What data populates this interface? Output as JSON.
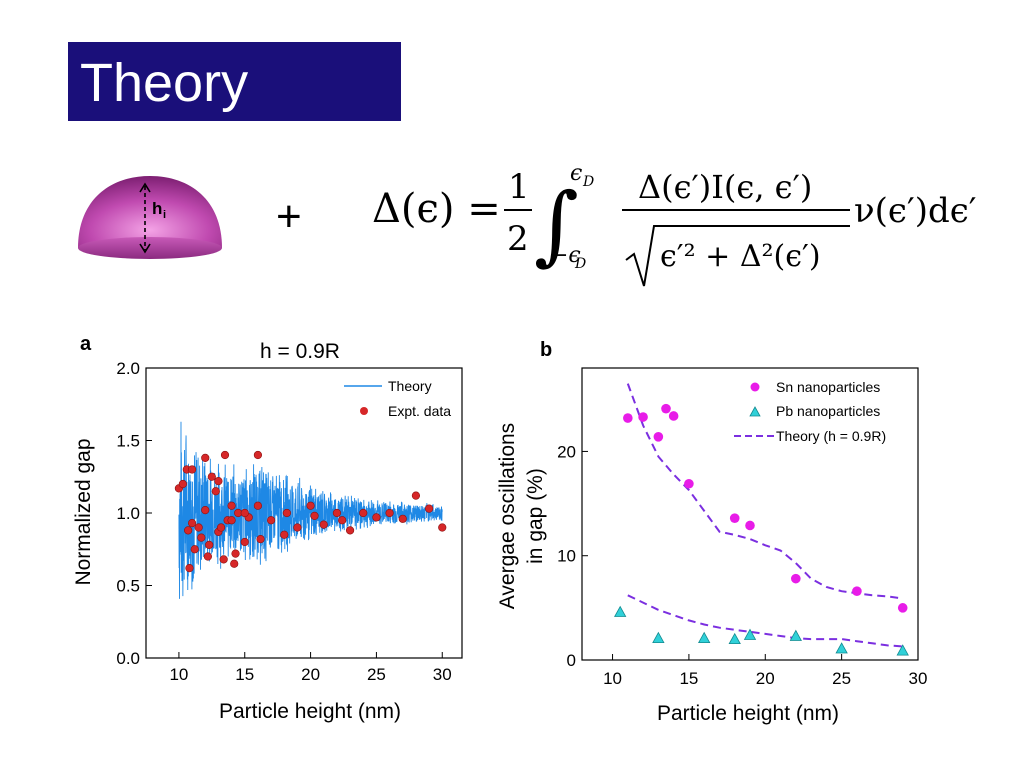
{
  "slide": {
    "title": "Theory",
    "plus": "+",
    "dome_label_main": "h",
    "dome_label_sub": "i",
    "colors": {
      "title_bg": "#1a0f7a",
      "dome": "#c04ab0"
    }
  },
  "equation": {
    "lhs": "Δ(ϵ) =",
    "frac_num": "1",
    "frac_den": "2",
    "integral": "∫",
    "upper_limit": "ϵ",
    "upper_limit_sub": "D",
    "lower_limit": "−ϵ",
    "lower_limit_sub": "D",
    "numerator": "Δ(ϵ′)I(ϵ, ϵ′)",
    "denominator": "ϵ′² + Δ²(ϵ′)",
    "tail": "ν(ϵ′)dϵ′"
  },
  "chart_data": [
    {
      "type": "line+scatter",
      "panel_label": "a",
      "title": "h = 0.9R",
      "xlabel": "Particle height (nm)",
      "ylabel": "Normalized gap",
      "xlim": [
        7.5,
        31.5
      ],
      "ylim": [
        0.0,
        2.0
      ],
      "xticks": [
        10,
        15,
        20,
        25,
        30
      ],
      "yticks": [
        "0.0",
        "0.5",
        "1.0",
        "1.5",
        "2.0"
      ],
      "legend_position": "top-right",
      "series": [
        {
          "name": "Theory",
          "color": "#1e88e5",
          "kind": "oscillation-band",
          "x_range": [
            10,
            30
          ],
          "center": 1.0,
          "amplitude": [
            [
              10,
              0.75
            ],
            [
              12,
              0.45
            ],
            [
              14,
              0.35
            ],
            [
              16,
              0.4
            ],
            [
              18,
              0.3
            ],
            [
              20,
              0.22
            ],
            [
              22,
              0.15
            ],
            [
              25,
              0.1
            ],
            [
              28,
              0.08
            ],
            [
              30,
              0.06
            ]
          ]
        },
        {
          "name": "Expt. data",
          "color": "#d62728",
          "x": [
            10.0,
            10.3,
            10.6,
            10.8,
            11.0,
            11.2,
            11.5,
            11.7,
            12.0,
            12.2,
            12.5,
            12.8,
            13.0,
            13.2,
            13.5,
            13.7,
            14.0,
            14.3,
            14.5,
            15.0,
            15.3,
            16.0,
            16.2,
            17.0,
            18.0,
            18.2,
            19.0,
            20.0,
            20.3,
            21.0,
            22.0,
            22.4,
            23.0,
            24.0,
            25.0,
            26.0,
            27.0,
            28.0,
            29.0,
            30.0,
            10.7,
            11.0,
            12.0,
            12.3,
            13.0,
            13.4,
            14.0,
            14.2,
            15.0,
            16.0
          ],
          "y": [
            1.17,
            1.2,
            1.3,
            0.62,
            1.3,
            0.75,
            0.9,
            0.83,
            1.38,
            0.7,
            1.25,
            1.15,
            0.87,
            0.9,
            1.4,
            0.95,
            1.05,
            0.72,
            1.0,
            0.8,
            0.97,
            1.4,
            0.82,
            0.95,
            0.85,
            1.0,
            0.9,
            1.05,
            0.98,
            0.92,
            1.0,
            0.95,
            0.88,
            1.0,
            0.97,
            1.0,
            0.96,
            1.12,
            1.03,
            0.9,
            0.88,
            0.93,
            1.02,
            0.78,
            1.22,
            0.68,
            0.95,
            0.65,
            1.0,
            1.05
          ]
        }
      ]
    },
    {
      "type": "scatter+line",
      "panel_label": "b",
      "title": "",
      "xlabel": "Particle height (nm)",
      "ylabel_line1": "Avergae oscillations",
      "ylabel_line2": "in gap (%)",
      "xlim": [
        8,
        30
      ],
      "ylim": [
        0,
        28
      ],
      "xticks": [
        10,
        15,
        20,
        25,
        30
      ],
      "yticks": [
        0,
        10,
        20
      ],
      "legend_position": "top-right",
      "series": [
        {
          "name": "Sn nanoparticles",
          "color": "#e81ce8",
          "marker": "circle",
          "x": [
            11,
            12,
            13,
            13.5,
            14,
            15,
            18,
            19,
            22,
            26,
            29
          ],
          "y": [
            23.2,
            23.3,
            21.4,
            24.1,
            23.4,
            16.9,
            13.6,
            12.9,
            7.8,
            6.6,
            5.0
          ]
        },
        {
          "name": "Pb nanoparticles",
          "color": "#30d0d8",
          "marker": "triangle",
          "x": [
            10.5,
            13,
            16,
            18,
            19,
            22,
            25,
            29
          ],
          "y": [
            4.6,
            2.1,
            2.1,
            2.0,
            2.4,
            2.3,
            1.1,
            0.9
          ]
        },
        {
          "name": "Theory (h = 0.9R)",
          "color": "#7b2fe0",
          "style": "dashed",
          "segments": [
            {
              "x": [
                11,
                12,
                13,
                14,
                15,
                16,
                17,
                18,
                19,
                20,
                21,
                22,
                23,
                24,
                25,
                26,
                27,
                28,
                29
              ],
              "y": [
                26.5,
                22.5,
                19.5,
                17.8,
                16.3,
                14.3,
                12.3,
                12.0,
                11.6,
                11.0,
                10.5,
                9.3,
                7.8,
                7.0,
                6.6,
                6.4,
                6.2,
                6.1,
                5.9
              ]
            },
            {
              "x": [
                11,
                12,
                13,
                14,
                15,
                16,
                17,
                18,
                19,
                20,
                21,
                22,
                23,
                24,
                25,
                26,
                27,
                28,
                29
              ],
              "y": [
                6.2,
                5.5,
                4.8,
                4.3,
                3.8,
                3.4,
                3.1,
                2.9,
                2.7,
                2.5,
                2.3,
                2.1,
                2.0,
                2.0,
                2.0,
                1.8,
                1.6,
                1.4,
                1.3
              ]
            }
          ]
        }
      ]
    }
  ]
}
